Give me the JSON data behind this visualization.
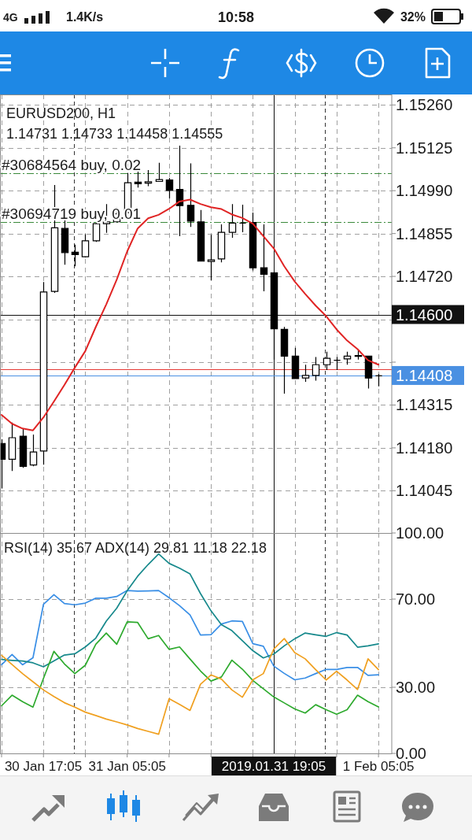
{
  "chart_data": [
    {
      "type": "candlestick",
      "title": "EURUSD200, H1",
      "subtitle": "1.14731 1.14733 1.14458 1.14555",
      "annotations": [
        "4G",
        "1.4K/s",
        "10:58",
        "32%"
      ],
      "x": [
        "2019-01-30T17:05",
        "2019-01-30T18:05",
        "2019-01-30T19:05",
        "2019-01-30T20:05",
        "2019-01-30T21:05",
        "2019-01-30T22:05",
        "2019-01-30T23:05",
        "2019-01-31T00:05",
        "2019-01-31T01:05",
        "2019-01-31T02:05",
        "2019-01-31T03:05",
        "2019-01-31T04:05",
        "2019-01-31T05:05",
        "2019-01-31T06:05",
        "2019-01-31T07:05",
        "2019-01-31T08:05",
        "2019-01-31T09:05",
        "2019-01-31T10:05",
        "2019-01-31T11:05",
        "2019-01-31T12:05",
        "2019-01-31T13:05",
        "2019-01-31T14:05",
        "2019-01-31T15:05",
        "2019-01-31T16:05",
        "2019-01-31T17:05",
        "2019-01-31T18:05",
        "2019-01-31T19:05",
        "2019-01-31T20:05",
        "2019-01-31T21:05",
        "2019-01-31T22:05",
        "2019-01-31T23:05",
        "2019-02-01T00:05",
        "2019-02-01T01:05",
        "2019-02-01T02:05",
        "2019-02-01T03:05",
        "2019-02-01T04:05",
        "2019-02-01T05:05"
      ],
      "series": [
        {
          "color": "#000000",
          "ohlc": [
            [
              1.14194,
              1.14207,
              1.14053,
              1.14144
            ],
            [
              1.14144,
              1.1426,
              1.14107,
              1.14212
            ],
            [
              1.14217,
              1.14239,
              1.14117,
              1.14122
            ],
            [
              1.14126,
              1.14222,
              1.14122,
              1.14167
            ],
            [
              1.1417,
              1.14702,
              1.14127,
              1.14671
            ],
            [
              1.14673,
              1.15008,
              1.14668,
              1.14873
            ],
            [
              1.14871,
              1.14898,
              1.14757,
              1.14795
            ],
            [
              1.14796,
              1.1482,
              1.14752,
              1.14789
            ],
            [
              1.14782,
              1.14853,
              1.1478,
              1.14832
            ],
            [
              1.14832,
              1.1489,
              1.14829,
              1.14886
            ],
            [
              1.14886,
              1.14948,
              1.14857,
              1.14892
            ],
            [
              1.14892,
              1.14938,
              1.1489,
              1.14917
            ],
            [
              1.14921,
              1.15045,
              1.14919,
              1.15015
            ],
            [
              1.15017,
              1.15057,
              1.15,
              1.15012
            ],
            [
              1.15014,
              1.15055,
              1.15004,
              1.15018
            ],
            [
              1.15019,
              1.15078,
              1.15018,
              1.15025
            ],
            [
              1.15024,
              1.1503,
              1.14966,
              1.14991
            ],
            [
              1.14994,
              1.15132,
              1.14847,
              1.14943
            ],
            [
              1.14944,
              1.15076,
              1.14876,
              1.14894
            ],
            [
              1.14892,
              1.14929,
              1.14767,
              1.14768
            ],
            [
              1.14767,
              1.14851,
              1.14708,
              1.14772
            ],
            [
              1.14775,
              1.14884,
              1.14764,
              1.14859
            ],
            [
              1.14859,
              1.14948,
              1.14842,
              1.14888
            ],
            [
              1.14888,
              1.14946,
              1.14859,
              1.14888
            ],
            [
              1.1489,
              1.14921,
              1.14739,
              1.14747
            ],
            [
              1.14747,
              1.14884,
              1.14673,
              1.14727
            ],
            [
              1.14731,
              1.14733,
              1.14458,
              1.14555
            ],
            [
              1.14553,
              1.14561,
              1.14351,
              1.14469
            ],
            [
              1.14469,
              1.14495,
              1.14397,
              1.14398
            ],
            [
              1.144,
              1.14442,
              1.14388,
              1.14408
            ],
            [
              1.14408,
              1.14466,
              1.14392,
              1.14442
            ],
            [
              1.14442,
              1.14483,
              1.14425,
              1.14462
            ],
            [
              1.14456,
              1.14466,
              1.14425,
              1.14456
            ],
            [
              1.1446,
              1.14483,
              1.14442,
              1.14469
            ],
            [
              1.14468,
              1.14487,
              1.14458,
              1.14471
            ],
            [
              1.14469,
              1.14469,
              1.14367,
              1.144
            ],
            [
              1.14407,
              1.14413,
              1.14374,
              1.14407
            ]
          ]
        },
        {
          "type": "line",
          "color": "#e02424",
          "values": [
            1.14284,
            1.14256,
            1.14241,
            1.14235,
            1.14276,
            1.14326,
            1.14378,
            1.14433,
            1.14485,
            1.14561,
            1.14632,
            1.1471,
            1.14799,
            1.14871,
            1.14903,
            1.14914,
            1.14933,
            1.14956,
            1.14962,
            1.14948,
            1.14938,
            1.14932,
            1.14915,
            1.14904,
            1.14886,
            1.14847,
            1.14808,
            1.14752,
            1.14704,
            1.14665,
            1.14628,
            1.14595,
            1.14553,
            1.14518,
            1.14491,
            1.14456,
            1.14442
          ]
        }
      ],
      "xlim": [
        "2019-01-30T16:56",
        "2019-02-01T06:21"
      ],
      "xticks": [
        {
          "value": "2019-01-30T17:05",
          "label": null
        },
        {
          "value": "2019-01-30T21:05",
          "label": null
        },
        {
          "value": "2019-01-31T01:05",
          "label": null
        },
        {
          "value": "2019-01-31T05:05",
          "label": null
        },
        {
          "value": "2019-01-31T09:05",
          "label": null
        },
        {
          "value": "2019-01-31T13:05",
          "label": null
        },
        {
          "value": "2019-01-31T17:05",
          "label": null
        },
        {
          "value": "2019-01-31T21:05",
          "label": null
        },
        {
          "value": "2019-02-01T01:05",
          "label": null
        },
        {
          "value": "2019-02-01T05:05",
          "label": null
        }
      ],
      "ylim": [
        1.13912,
        1.15293
      ],
      "yticks": [
        {
          "value": 1.1526,
          "label": "1.15260"
        },
        {
          "value": 1.15125,
          "label": "1.15125"
        },
        {
          "value": 1.1499,
          "label": "1.14990"
        },
        {
          "value": 1.14855,
          "label": "1.14855"
        },
        {
          "value": 1.1472,
          "label": "1.14720"
        },
        {
          "value": 1.14585,
          "label": null
        },
        {
          "value": 1.1445,
          "label": null
        },
        {
          "value": 1.14315,
          "label": "1.14315"
        },
        {
          "value": 1.1418,
          "label": "1.14180"
        },
        {
          "value": 1.14045,
          "label": "1.14045"
        }
      ],
      "grid": true,
      "tick_labels": "y",
      "ref_lines": [
        {
          "axis": "x",
          "value": "2019-01-31T00:00",
          "color": "#333333",
          "line_style": "dashed"
        },
        {
          "axis": "x",
          "value": "2019-02-01T00:00",
          "color": "#333333",
          "line_style": "dashed"
        },
        {
          "axis": "x",
          "value": "2019-01-31T19:05",
          "color": "#111111",
          "line_style": "solid"
        },
        {
          "axis": "y",
          "value": 1.15045,
          "label": "#30684564 buy, 0.02",
          "color": "#3a8a3a",
          "line_style": "dashed"
        },
        {
          "axis": "y",
          "value": 1.14892,
          "label": "#30694719 buy, 0.01",
          "color": "#3a8a3a",
          "line_style": "dashed"
        },
        {
          "axis": "y",
          "value": 1.146,
          "label": "1.14600",
          "color": "#111111",
          "line_style": "solid"
        },
        {
          "axis": "y",
          "value": 1.14427,
          "color": "#e53935",
          "line_style": "solid"
        },
        {
          "axis": "y",
          "value": 1.14408,
          "label": "1.14408",
          "color": "#4a90e2",
          "line_style": "solid"
        }
      ]
    },
    {
      "type": "line",
      "title": "RSI(14) 35.67 ADX(14) 29.81 11.18 22.18",
      "x": [
        "2019-01-30T17:05",
        "2019-01-30T18:05",
        "2019-01-30T19:05",
        "2019-01-30T20:05",
        "2019-01-30T21:05",
        "2019-01-30T22:05",
        "2019-01-30T23:05",
        "2019-01-31T00:05",
        "2019-01-31T01:05",
        "2019-01-31T02:05",
        "2019-01-31T03:05",
        "2019-01-31T04:05",
        "2019-01-31T05:05",
        "2019-01-31T06:05",
        "2019-01-31T07:05",
        "2019-01-31T08:05",
        "2019-01-31T09:05",
        "2019-01-31T10:05",
        "2019-01-31T11:05",
        "2019-01-31T12:05",
        "2019-01-31T13:05",
        "2019-01-31T14:05",
        "2019-01-31T15:05",
        "2019-01-31T16:05",
        "2019-01-31T17:05",
        "2019-01-31T18:05",
        "2019-01-31T19:05",
        "2019-01-31T20:05",
        "2019-01-31T21:05",
        "2019-01-31T22:05",
        "2019-01-31T23:05",
        "2019-02-01T00:05",
        "2019-02-01T01:05",
        "2019-02-01T02:05",
        "2019-02-01T03:05",
        "2019-02-01T04:05",
        "2019-02-01T05:05"
      ],
      "series": [
        {
          "color": "#3a8fe6",
          "values": [
            40.2,
            44.9,
            40.2,
            43.4,
            67.6,
            72.0,
            68.0,
            67.4,
            68.2,
            70.4,
            70.4,
            71.2,
            73.9,
            73.6,
            73.7,
            73.9,
            70.6,
            67.0,
            62.8,
            53.7,
            53.9,
            58.7,
            60.1,
            59.9,
            49.8,
            48.6,
            39.6,
            36.3,
            33.4,
            34.2,
            36.2,
            38.1,
            38.1,
            39.0,
            39.0,
            35.4,
            35.7
          ]
        },
        {
          "color": "#17898c",
          "values": [
            42.6,
            42.2,
            41.9,
            41.1,
            39.3,
            42.0,
            44.6,
            45.2,
            48.3,
            52.3,
            60.0,
            65.9,
            73.8,
            80.4,
            85.7,
            90.5,
            86.2,
            84.0,
            81.4,
            72.5,
            64.7,
            58.4,
            55.7,
            51.1,
            46.6,
            43.3,
            45.1,
            48.8,
            52.0,
            54.6,
            53.8,
            53.1,
            54.8,
            53.7,
            48.2,
            48.8,
            49.7
          ]
        },
        {
          "color": "#2eaa2e",
          "values": [
            21.6,
            26.4,
            23.5,
            21.0,
            34.0,
            46.3,
            40.6,
            36.2,
            40.0,
            49.5,
            54.6,
            49.5,
            59.7,
            59.4,
            52.0,
            53.5,
            47.2,
            48.3,
            42.8,
            37.4,
            32.8,
            34.7,
            42.3,
            38.2,
            33.1,
            29.3,
            25.6,
            22.9,
            20.2,
            18.3,
            22.1,
            19.8,
            17.8,
            19.8,
            26.4,
            23.5,
            21.1
          ]
        },
        {
          "color": "#f0a020",
          "values": [
            44.5,
            40.3,
            36.2,
            32.5,
            28.8,
            25.8,
            23.0,
            21.0,
            18.7,
            17.2,
            15.6,
            14.3,
            12.9,
            11.3,
            10.0,
            8.7,
            24.8,
            22.2,
            19.5,
            31.4,
            35.6,
            33.7,
            28.8,
            25.5,
            33.4,
            36.2,
            47.4,
            52.1,
            45.7,
            42.9,
            38.0,
            33.3,
            37.3,
            33.3,
            29.0,
            42.9,
            38.0
          ]
        }
      ],
      "xlim": [
        "2019-01-30T16:56",
        "2019-02-01T06:21"
      ],
      "xticks": [
        {
          "value": "2019-01-30T17:05",
          "label": "30 Jan 17:05"
        },
        {
          "value": "2019-01-30T21:05",
          "label": null
        },
        {
          "value": "2019-01-31T01:05",
          "label": null
        },
        {
          "value": "2019-01-31T05:05",
          "label": "31 Jan 05:05"
        },
        {
          "value": "2019-01-31T09:05",
          "label": null
        },
        {
          "value": "2019-01-31T13:05",
          "label": null
        },
        {
          "value": "2019-01-31T17:05",
          "label": null
        },
        {
          "value": "2019-01-31T21:05",
          "label": null
        },
        {
          "value": "2019-02-01T01:05",
          "label": null
        },
        {
          "value": "2019-02-01T05:05",
          "label": "1 Feb 05:05"
        }
      ],
      "ylim": [
        0,
        100
      ],
      "yticks": [
        {
          "value": 0,
          "label": "0.00"
        },
        {
          "value": 30,
          "label": "30.00"
        },
        {
          "value": 70,
          "label": "70.00"
        },
        {
          "value": 100,
          "label": "100.00"
        }
      ],
      "grid": true,
      "ref_lines": [
        {
          "axis": "x",
          "value": "2019-01-31T00:00",
          "color": "#333333",
          "line_style": "dashed"
        },
        {
          "axis": "x",
          "value": "2019-02-01T00:00",
          "color": "#333333",
          "line_style": "dashed"
        },
        {
          "axis": "x",
          "value": "2019-01-31T19:05",
          "label": "2019.01.31 19:05",
          "color": "#111111",
          "line_style": "solid"
        }
      ]
    }
  ]
}
